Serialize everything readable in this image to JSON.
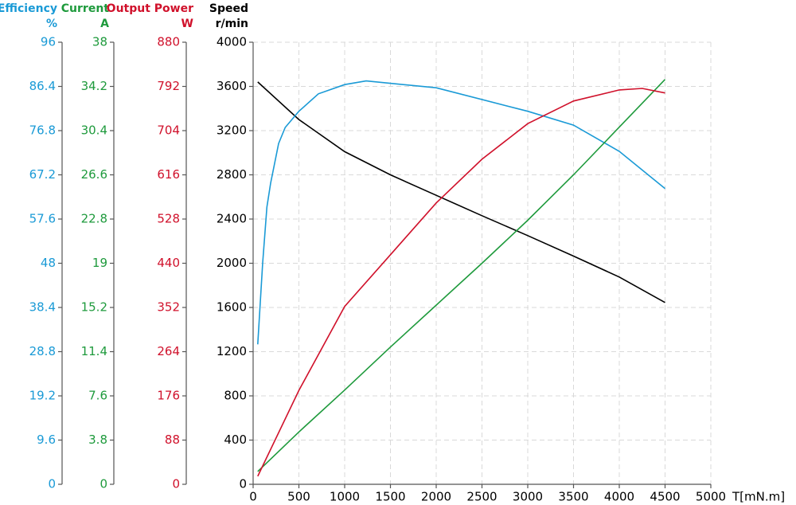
{
  "chart_data": {
    "type": "line",
    "x_label": "T[mN.m]",
    "xlim": [
      0,
      5000
    ],
    "xticks": [
      0,
      500,
      1000,
      1500,
      2000,
      2500,
      3000,
      3500,
      4000,
      4500,
      5000
    ],
    "y_title": "Speed",
    "y_unit": "r/min",
    "ylim": [
      0,
      4000
    ],
    "yticks": [
      0,
      400,
      800,
      1200,
      1600,
      2000,
      2400,
      2800,
      3200,
      3600,
      4000
    ],
    "y2_title": "Efficiency",
    "y2_unit": "%",
    "y2lim": [
      0,
      96
    ],
    "y2ticks": [
      0,
      9.6,
      19.2,
      28.8,
      38.4,
      48,
      57.6,
      67.2,
      76.8,
      86.4,
      96
    ],
    "y3_title": "Current",
    "y3_unit": "A",
    "y3lim": [
      0,
      38
    ],
    "y3ticks": [
      0,
      3.8,
      7.6,
      11.4,
      15.2,
      19,
      22.8,
      26.6,
      30.4,
      34.2,
      38
    ],
    "y4_title": "Output Power",
    "y4_unit": "W",
    "y4lim": [
      0,
      880
    ],
    "y4ticks": [
      0,
      88,
      176,
      264,
      352,
      440,
      528,
      616,
      704,
      792,
      880
    ],
    "grid": true,
    "series": [
      {
        "name": "Speed",
        "color": "#000000",
        "axis": "y",
        "x": [
          50,
          500,
          1000,
          1500,
          2000,
          2500,
          3000,
          3500,
          4000,
          4500
        ],
        "values": [
          3640,
          3300,
          3010,
          2800,
          2615,
          2430,
          2250,
          2065,
          1875,
          1645
        ]
      },
      {
        "name": "Efficiency",
        "color": "#1a9ad6",
        "axis": "y2",
        "x": [
          50,
          104,
          150,
          191,
          278,
          350,
          500,
          713,
          1000,
          1235,
          2000,
          3000,
          3500,
          4000,
          4500
        ],
        "values": [
          30.4,
          48.1,
          60.2,
          65.4,
          74.0,
          77.5,
          81.0,
          84.8,
          86.8,
          87.6,
          86.1,
          81.0,
          78.0,
          72.3,
          64.2
        ]
      },
      {
        "name": "Current",
        "color": "#1e9a3c",
        "axis": "y3",
        "x": [
          50,
          500,
          1000,
          1500,
          2000,
          2500,
          3000,
          3500,
          4000,
          4500
        ],
        "values": [
          1.1,
          4.5,
          8.1,
          11.8,
          15.4,
          19.0,
          22.7,
          26.6,
          30.7,
          34.8
        ]
      },
      {
        "name": "Output Power",
        "color": "#d0112b",
        "axis": "y4",
        "x": [
          50,
          500,
          1000,
          1500,
          2000,
          2500,
          3000,
          3500,
          4000,
          4250,
          4500
        ],
        "values": [
          16,
          187,
          354,
          457,
          560,
          647,
          718,
          763,
          785,
          788,
          779
        ]
      }
    ]
  }
}
